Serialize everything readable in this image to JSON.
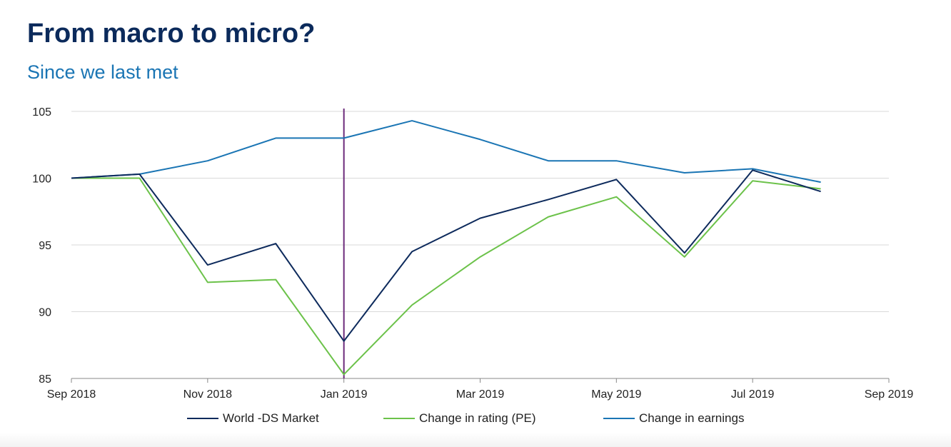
{
  "header": {
    "title": "From macro to micro?",
    "subtitle": "Since we last met"
  },
  "chart_data": {
    "type": "line",
    "title": "From macro to micro?",
    "subtitle": "Since we last met",
    "x": [
      "Sep 2018",
      "Oct 2018",
      "Nov 2018",
      "Dec 2018",
      "Jan 2019",
      "Feb 2019",
      "Mar 2019",
      "Apr 2019",
      "May 2019",
      "Jun 2019",
      "Jul 2019",
      "Aug 2019"
    ],
    "x_ticks": [
      "Sep 2018",
      "Nov 2018",
      "Jan 2019",
      "Mar 2019",
      "May 2019",
      "Jul 2019",
      "Sep 2019"
    ],
    "y_ticks": [
      85,
      90,
      95,
      100,
      105
    ],
    "ylim": [
      85,
      105
    ],
    "grid": true,
    "legend": "bottom",
    "vline": {
      "at": "Jan 2019",
      "color": "#6b2a7a"
    },
    "series": [
      {
        "name": "World -DS Market",
        "color": "#0d2a5c",
        "values": [
          100,
          100.3,
          93.5,
          95.1,
          87.8,
          94.5,
          97.0,
          98.4,
          99.9,
          94.4,
          100.6,
          99.0
        ]
      },
      {
        "name": "Change in rating (PE)",
        "color": "#6cc24a",
        "values": [
          100,
          100,
          92.2,
          92.4,
          85.3,
          90.5,
          94.1,
          97.1,
          98.6,
          94.1,
          99.8,
          99.2
        ]
      },
      {
        "name": "Change in earnings",
        "color": "#1a75b4",
        "values": [
          100,
          100.3,
          101.3,
          103.0,
          103.0,
          104.3,
          102.9,
          101.3,
          101.3,
          100.4,
          100.7,
          99.7
        ]
      }
    ]
  }
}
